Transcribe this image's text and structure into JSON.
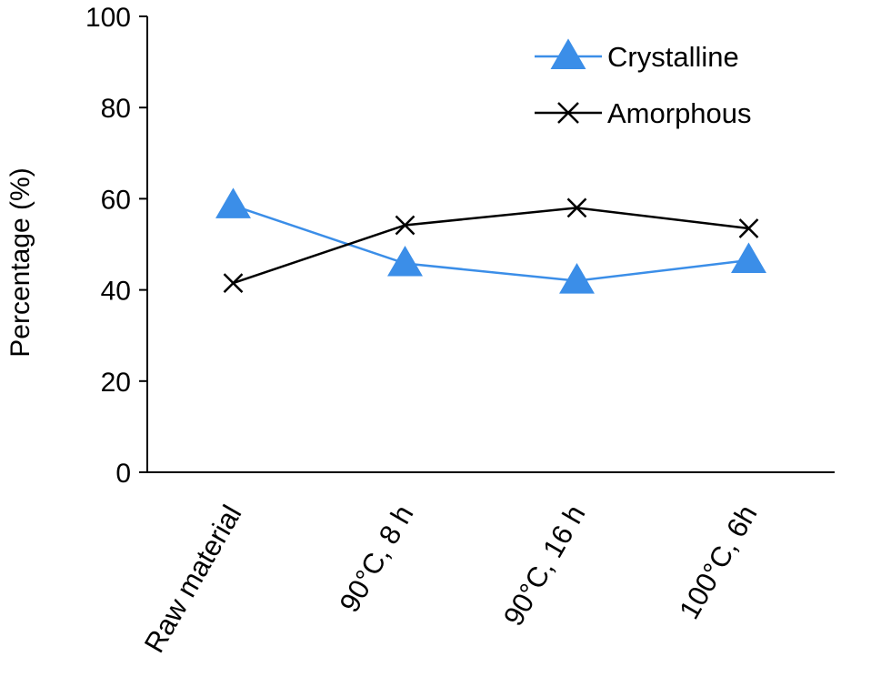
{
  "chart_data": {
    "type": "line",
    "categories": [
      "Raw material",
      "90°C, 8 h",
      "90°C, 16 h",
      "100°C, 6h"
    ],
    "series": [
      {
        "name": "Crystalline",
        "values": [
          58.5,
          45.8,
          42.0,
          46.5
        ],
        "color": "#3b8ee8",
        "marker": "triangle"
      },
      {
        "name": "Amorphous",
        "values": [
          41.5,
          54.2,
          58.0,
          53.5
        ],
        "color": "#000000",
        "marker": "x"
      }
    ],
    "xlabel": "",
    "ylabel": "Percentage (%)",
    "ylim": [
      0,
      100
    ],
    "yticks": [
      0,
      20,
      40,
      60,
      80,
      100
    ],
    "grid": false,
    "legend": "top-right"
  }
}
